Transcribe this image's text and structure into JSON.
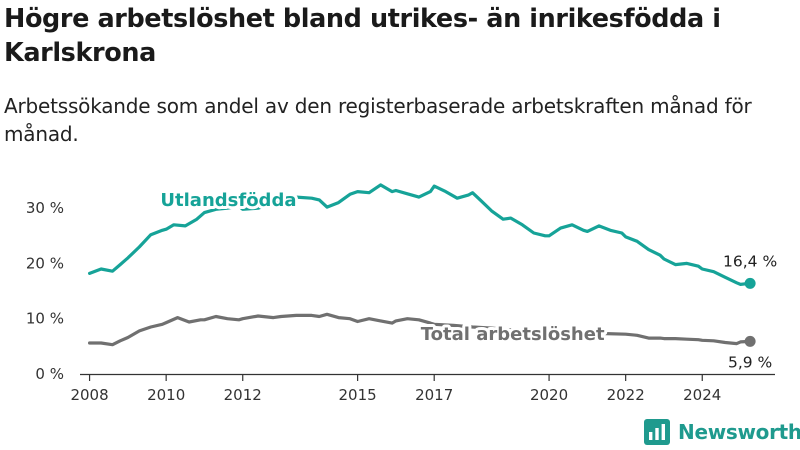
{
  "title": "Högre arbetslöshet bland utrikes- än inrikesfödda i Karlskrona",
  "subtitle": "Arbetssökande som andel av den registerbaserade arbetskraften månad för månad.",
  "brand": {
    "name": "Newsworthy",
    "icon": "bar-chart-logo-icon"
  },
  "colors": {
    "foreign": "#16a398",
    "total": "#707070",
    "axis": "#333333"
  },
  "chart_data": {
    "type": "line",
    "title": "Högre arbetslöshet bland utrikes- än inrikesfödda i Karlskrona",
    "subtitle": "Arbetssökande som andel av den registerbaserade arbetskraften månad för månad.",
    "xlabel": "",
    "ylabel": "",
    "xlim": [
      2007.75,
      2025.9
    ],
    "ylim": [
      0,
      36
    ],
    "x_ticks": [
      2008,
      2010,
      2012,
      2015,
      2017,
      2020,
      2022,
      2024
    ],
    "x_tick_labels": [
      "2008",
      "2010",
      "2012",
      "2015",
      "2017",
      "2020",
      "2022",
      "2024"
    ],
    "y_ticks": [
      0,
      10,
      20,
      30
    ],
    "y_tick_labels": [
      "0 %",
      "10 %",
      "20 %",
      "30 %"
    ],
    "grid": false,
    "legend": "none",
    "series": [
      {
        "name": "Utlandsfödda",
        "end_label": "16,4 %",
        "x": [
          2008.0,
          2008.3,
          2008.6,
          2008.8,
          2009.0,
          2009.3,
          2009.6,
          2009.9,
          2010.0,
          2010.2,
          2010.5,
          2010.8,
          2011.0,
          2011.3,
          2011.6,
          2011.9,
          2012.0,
          2012.4,
          2012.8,
          2013.0,
          2013.4,
          2013.8,
          2014.0,
          2014.2,
          2014.5,
          2014.8,
          2015.0,
          2015.3,
          2015.6,
          2015.9,
          2016.0,
          2016.3,
          2016.6,
          2016.9,
          2017.0,
          2017.3,
          2017.6,
          2017.9,
          2018.0,
          2018.2,
          2018.5,
          2018.8,
          2019.0,
          2019.3,
          2019.6,
          2019.9,
          2020.0,
          2020.3,
          2020.6,
          2020.9,
          2021.0,
          2021.3,
          2021.6,
          2021.9,
          2022.0,
          2022.3,
          2022.6,
          2022.9,
          2023.0,
          2023.3,
          2023.6,
          2023.9,
          2024.0,
          2024.3,
          2024.6,
          2024.9,
          2025.0,
          2025.25
        ],
        "values": [
          18.2,
          19.0,
          18.6,
          19.8,
          21.0,
          23.0,
          25.2,
          26.0,
          26.2,
          27.0,
          26.8,
          28.0,
          29.2,
          29.8,
          30.0,
          30.4,
          29.8,
          30.0,
          31.0,
          31.5,
          32.0,
          31.8,
          31.5,
          30.2,
          31.0,
          32.5,
          33.0,
          32.8,
          34.2,
          33.0,
          33.2,
          32.6,
          32.0,
          33.0,
          34.0,
          33.0,
          31.8,
          32.4,
          32.8,
          31.5,
          29.5,
          28.0,
          28.2,
          27.0,
          25.5,
          25.0,
          25.0,
          26.4,
          27.0,
          26.0,
          25.8,
          26.8,
          26.0,
          25.5,
          24.8,
          24.0,
          22.5,
          21.5,
          20.8,
          19.8,
          20.0,
          19.5,
          19.0,
          18.5,
          17.5,
          16.5,
          16.2,
          16.4
        ]
      },
      {
        "name": "Total arbetslöshet",
        "end_label": "5,9 %",
        "x": [
          2008.0,
          2008.3,
          2008.6,
          2008.8,
          2009.0,
          2009.3,
          2009.6,
          2009.9,
          2010.0,
          2010.3,
          2010.6,
          2010.9,
          2011.0,
          2011.3,
          2011.6,
          2011.9,
          2012.0,
          2012.4,
          2012.8,
          2013.0,
          2013.4,
          2013.8,
          2014.0,
          2014.2,
          2014.5,
          2014.8,
          2015.0,
          2015.3,
          2015.6,
          2015.9,
          2016.0,
          2016.3,
          2016.6,
          2016.9,
          2017.0,
          2017.5,
          2018.0,
          2018.5,
          2019.0,
          2019.5,
          2020.0,
          2020.5,
          2021.0,
          2021.5,
          2022.0,
          2022.3,
          2022.6,
          2022.9,
          2023.0,
          2023.3,
          2023.6,
          2023.9,
          2024.0,
          2024.3,
          2024.6,
          2024.9,
          2025.0,
          2025.25
        ],
        "values": [
          5.6,
          5.6,
          5.3,
          6.0,
          6.6,
          7.8,
          8.5,
          9.0,
          9.3,
          10.2,
          9.4,
          9.8,
          9.8,
          10.4,
          10.0,
          9.8,
          10.0,
          10.5,
          10.2,
          10.4,
          10.6,
          10.6,
          10.4,
          10.8,
          10.2,
          10.0,
          9.5,
          10.0,
          9.6,
          9.2,
          9.6,
          10.0,
          9.8,
          9.2,
          9.0,
          8.8,
          8.5,
          8.3,
          8.0,
          7.8,
          7.6,
          7.5,
          7.4,
          7.3,
          7.2,
          7.0,
          6.5,
          6.5,
          6.4,
          6.4,
          6.3,
          6.2,
          6.1,
          6.0,
          5.7,
          5.5,
          5.8,
          5.9
        ]
      }
    ]
  }
}
